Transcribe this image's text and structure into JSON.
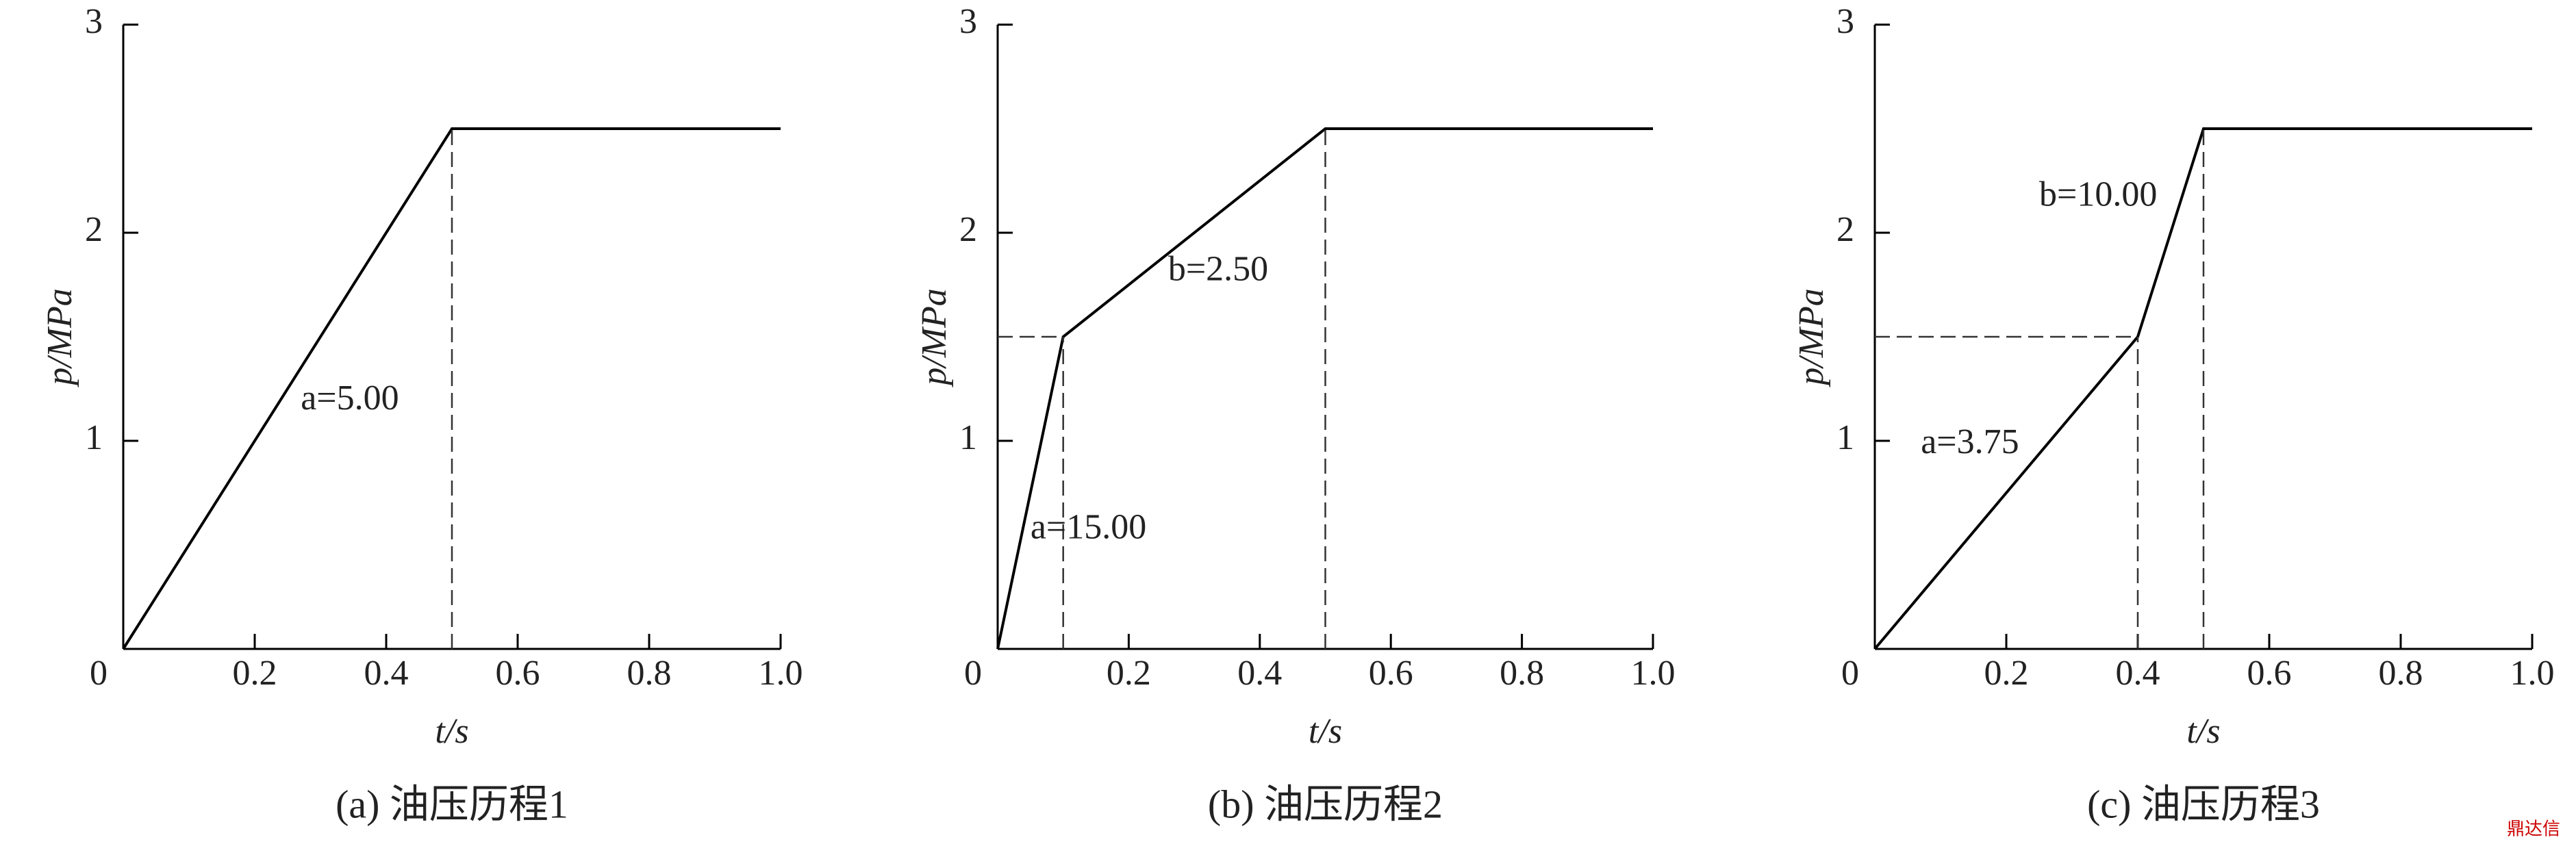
{
  "chart_data": [
    {
      "type": "line",
      "caption": "(a) 油压历程1",
      "xlabel": "t/s",
      "ylabel": "p/MPa",
      "x": [
        0,
        0.5,
        1.0
      ],
      "series": [
        {
          "color": "#000000",
          "values": [
            0,
            2.5,
            2.5
          ]
        }
      ],
      "annotations": [
        "a=5.00"
      ],
      "xlim": [
        0,
        1
      ],
      "ylim": [
        0,
        3
      ],
      "xticks": [
        0,
        0.2,
        0.4,
        0.6,
        0.8,
        {
          "value": 1,
          "label": "1.0"
        }
      ],
      "yticks": [
        1,
        2,
        3
      ],
      "drop_lines": true,
      "grid": false
    },
    {
      "type": "line",
      "caption": "(b) 油压历程2",
      "xlabel": "t/s",
      "ylabel": "p/MPa",
      "x": [
        0,
        0.1,
        0.5,
        1.0
      ],
      "series": [
        {
          "color": "#000000",
          "values": [
            0,
            1.5,
            2.5,
            2.5
          ]
        }
      ],
      "annotations": [
        "b=2.50",
        "a=15.00"
      ],
      "xlim": [
        0,
        1
      ],
      "ylim": [
        0,
        3
      ],
      "xticks": [
        0,
        0.2,
        0.4,
        0.6,
        0.8,
        {
          "value": 1,
          "label": "1.0"
        }
      ],
      "yticks": [
        1,
        2,
        3
      ],
      "drop_lines": true,
      "grid": false
    },
    {
      "type": "line",
      "caption": "(c) 油压历程3",
      "xlabel": "t/s",
      "ylabel": "p/MPa",
      "x": [
        0,
        0.4,
        0.5,
        1.0
      ],
      "series": [
        {
          "color": "#000000",
          "values": [
            0,
            1.5,
            2.5,
            2.5
          ]
        }
      ],
      "annotations": [
        "b=10.00",
        "a=3.75"
      ],
      "xlim": [
        0,
        1
      ],
      "ylim": [
        0,
        3
      ],
      "xticks": [
        0,
        0.2,
        0.4,
        0.6,
        0.8,
        {
          "value": 1,
          "label": "1.0"
        }
      ],
      "yticks": [
        1,
        2,
        3
      ],
      "drop_lines": true,
      "grid": false
    }
  ],
  "watermark": "鼎达信"
}
